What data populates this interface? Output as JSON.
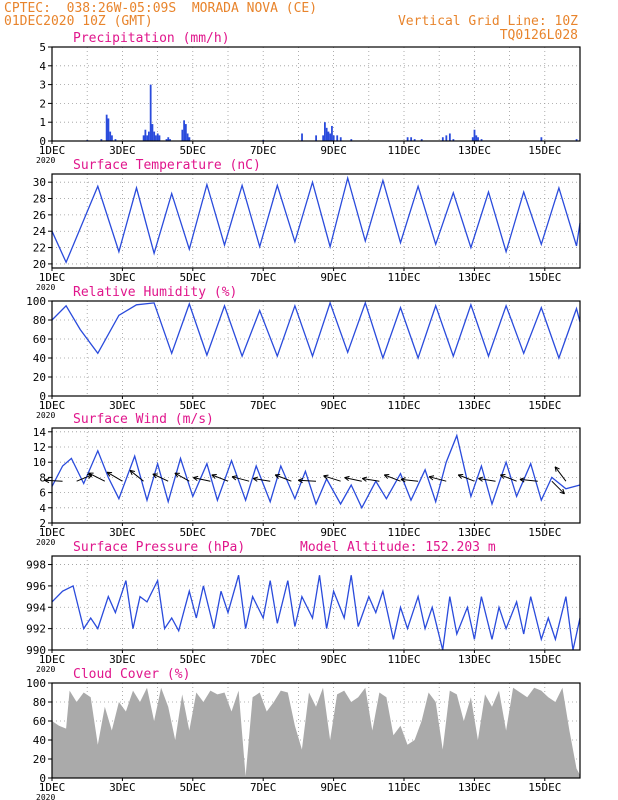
{
  "header": {
    "station": "CPTEC:  038:26W-05:09S  MORADA NOVA (CE)",
    "run": "01DEC2020 10Z (GMT)",
    "grid_note": "Vertical Grid Line: 10Z",
    "code": "TQ0126L028"
  },
  "colors": {
    "header": "#e8842c",
    "title": "#e0168c",
    "line": "#2a4bdc",
    "bar": "#2a4bdc",
    "cloud": "#aaaaaa",
    "grid": "#9a9a9a"
  },
  "x_axis": {
    "ticks": [
      {
        "day": 1,
        "label": "1DEC"
      },
      {
        "day": 3,
        "label": "3DEC"
      },
      {
        "day": 5,
        "label": "5DEC"
      },
      {
        "day": 7,
        "label": "7DEC"
      },
      {
        "day": 9,
        "label": "9DEC"
      },
      {
        "day": 11,
        "label": "11DEC"
      },
      {
        "day": 13,
        "label": "13DEC"
      },
      {
        "day": 15,
        "label": "15DEC"
      }
    ],
    "range": [
      1,
      16
    ],
    "year_label": "2020"
  },
  "chart_data": [
    {
      "type": "bar",
      "title": "Precipitation (mm/h)",
      "ylim": [
        0,
        5
      ],
      "yticks": [
        0,
        1,
        2,
        3,
        4,
        5
      ],
      "x": [
        2.0,
        2.4,
        2.55,
        2.6,
        2.65,
        2.7,
        2.8,
        3.6,
        3.65,
        3.7,
        3.75,
        3.8,
        3.85,
        3.9,
        3.95,
        4.0,
        4.05,
        4.25,
        4.3,
        4.35,
        4.7,
        4.75,
        4.8,
        4.85,
        4.9,
        7.0,
        8.1,
        8.5,
        8.7,
        8.75,
        8.8,
        8.85,
        8.9,
        8.95,
        9.0,
        9.1,
        9.2,
        9.5,
        11.1,
        11.2,
        11.3,
        11.5,
        12.1,
        12.2,
        12.3,
        12.4,
        12.95,
        13.0,
        13.05,
        13.1,
        13.2,
        14.9,
        15.9
      ],
      "values": [
        0.05,
        0.1,
        1.4,
        1.2,
        0.5,
        0.3,
        0.1,
        0.3,
        0.6,
        0.3,
        0.5,
        3.0,
        0.9,
        0.5,
        0.3,
        0.4,
        0.3,
        0.1,
        0.2,
        0.1,
        0.6,
        1.1,
        0.9,
        0.4,
        0.2,
        0.05,
        0.4,
        0.3,
        0.3,
        1.0,
        0.7,
        0.5,
        0.4,
        0.8,
        0.3,
        0.3,
        0.2,
        0.1,
        0.2,
        0.2,
        0.1,
        0.1,
        0.2,
        0.3,
        0.4,
        0.1,
        0.2,
        0.6,
        0.3,
        0.2,
        0.1,
        0.2,
        0.1
      ]
    },
    {
      "type": "line",
      "title": "Surface Temperature (nC)",
      "ylim": [
        19.5,
        31
      ],
      "yticks": [
        20,
        22,
        24,
        26,
        28,
        30
      ],
      "x": [
        1.0,
        1.4,
        2.3,
        2.9,
        3.4,
        3.9,
        4.4,
        4.9,
        5.4,
        5.9,
        6.4,
        6.9,
        7.4,
        7.9,
        8.4,
        8.9,
        9.4,
        9.9,
        10.4,
        10.9,
        11.4,
        11.9,
        12.4,
        12.9,
        13.4,
        13.9,
        14.4,
        14.9,
        15.4,
        15.9,
        16.0
      ],
      "values": [
        24.0,
        20.2,
        29.5,
        21.5,
        29.3,
        21.3,
        28.6,
        21.8,
        29.7,
        22.3,
        29.6,
        22.1,
        29.6,
        22.7,
        30.0,
        22.1,
        30.5,
        22.8,
        30.2,
        22.6,
        29.5,
        22.4,
        28.7,
        22.0,
        28.8,
        21.5,
        28.8,
        22.4,
        29.3,
        22.2,
        25.0
      ]
    },
    {
      "type": "line",
      "title": "Relative Humidity (%)",
      "ylim": [
        0,
        100
      ],
      "yticks": [
        0,
        20,
        40,
        60,
        80,
        100
      ],
      "x": [
        1.0,
        1.4,
        1.8,
        2.3,
        2.9,
        3.4,
        3.9,
        4.4,
        4.9,
        5.4,
        5.9,
        6.4,
        6.9,
        7.4,
        7.9,
        8.4,
        8.9,
        9.4,
        9.9,
        10.4,
        10.9,
        11.4,
        11.9,
        12.4,
        12.9,
        13.4,
        13.9,
        14.4,
        14.9,
        15.4,
        15.9,
        16.0
      ],
      "values": [
        80,
        95,
        70,
        45,
        85,
        96,
        98,
        45,
        97,
        43,
        95,
        42,
        90,
        42,
        95,
        42,
        98,
        46,
        98,
        40,
        93,
        40,
        95,
        42,
        96,
        42,
        95,
        45,
        93,
        40,
        92,
        78
      ]
    },
    {
      "type": "line",
      "title": "Surface Wind (m/s)",
      "ylim": [
        2,
        14.5
      ],
      "yticks": [
        2,
        4,
        6,
        8,
        10,
        12,
        14
      ],
      "x": [
        1.0,
        1.3,
        1.55,
        1.9,
        2.3,
        2.6,
        2.9,
        3.35,
        3.7,
        4.0,
        4.3,
        4.65,
        5.0,
        5.4,
        5.7,
        6.1,
        6.5,
        6.8,
        7.2,
        7.5,
        7.9,
        8.2,
        8.5,
        8.8,
        9.2,
        9.5,
        9.8,
        10.2,
        10.5,
        10.9,
        11.2,
        11.6,
        11.9,
        12.2,
        12.5,
        12.9,
        13.2,
        13.5,
        13.9,
        14.2,
        14.6,
        14.9,
        15.2,
        15.6,
        16.0
      ],
      "values": [
        6.8,
        9.5,
        10.5,
        7.2,
        11.5,
        8.0,
        5.2,
        10.8,
        5.0,
        9.8,
        4.8,
        10.5,
        5.5,
        9.8,
        5.0,
        10.2,
        5.0,
        9.5,
        4.8,
        9.5,
        5.2,
        8.8,
        4.5,
        7.8,
        4.5,
        7.0,
        4.0,
        7.5,
        5.2,
        8.5,
        5.0,
        9.0,
        4.8,
        10.0,
        13.5,
        5.5,
        9.5,
        4.5,
        10.0,
        5.5,
        9.8,
        5.0,
        8.0,
        6.5,
        7.0
      ],
      "arrows": [
        {
          "x": 1.3,
          "u": 1,
          "v": 0.05
        },
        {
          "x": 1.7,
          "u": -0.85,
          "v": 0.35
        },
        {
          "x": 2.5,
          "u": 0.9,
          "v": 0.45
        },
        {
          "x": 3.0,
          "u": 0.85,
          "v": 0.5
        },
        {
          "x": 3.6,
          "u": 0.75,
          "v": 0.6
        },
        {
          "x": 4.3,
          "u": 0.85,
          "v": 0.4
        },
        {
          "x": 4.9,
          "u": 0.8,
          "v": 0.45
        },
        {
          "x": 5.5,
          "u": 0.95,
          "v": 0.2
        },
        {
          "x": 6.0,
          "u": 0.9,
          "v": 0.35
        },
        {
          "x": 6.6,
          "u": 0.95,
          "v": 0.25
        },
        {
          "x": 7.2,
          "u": 0.95,
          "v": 0.15
        },
        {
          "x": 7.8,
          "u": 0.9,
          "v": 0.35
        },
        {
          "x": 8.5,
          "u": 0.99,
          "v": 0.05
        },
        {
          "x": 9.2,
          "u": 0.95,
          "v": 0.3
        },
        {
          "x": 9.8,
          "u": 0.95,
          "v": 0.2
        },
        {
          "x": 10.3,
          "u": 0.95,
          "v": 0.15
        },
        {
          "x": 10.9,
          "u": 0.9,
          "v": 0.35
        },
        {
          "x": 11.4,
          "u": 0.95,
          "v": 0.1
        },
        {
          "x": 12.2,
          "u": 0.95,
          "v": 0.25
        },
        {
          "x": 13.0,
          "u": 0.9,
          "v": 0.35
        },
        {
          "x": 13.6,
          "u": 0.95,
          "v": 0.15
        },
        {
          "x": 14.2,
          "u": 0.9,
          "v": 0.35
        },
        {
          "x": 14.8,
          "u": 0.99,
          "v": 0.1
        },
        {
          "x": 15.2,
          "u": -0.7,
          "v": -0.7
        },
        {
          "x": 15.6,
          "u": 0.6,
          "v": 0.8
        }
      ]
    },
    {
      "type": "line",
      "title": "Surface Pressure (hPa)",
      "annotation": "Model Altitude: 152.203 m",
      "ylim": [
        990,
        998.8
      ],
      "yticks": [
        990,
        992,
        994,
        996,
        998
      ],
      "x": [
        1.0,
        1.3,
        1.6,
        1.9,
        2.1,
        2.3,
        2.6,
        2.8,
        3.1,
        3.3,
        3.5,
        3.7,
        4.0,
        4.2,
        4.4,
        4.6,
        4.9,
        5.1,
        5.3,
        5.6,
        5.8,
        6.0,
        6.3,
        6.5,
        6.7,
        7.0,
        7.2,
        7.4,
        7.7,
        7.9,
        8.1,
        8.4,
        8.6,
        8.8,
        9.0,
        9.3,
        9.5,
        9.7,
        10.0,
        10.2,
        10.4,
        10.7,
        10.9,
        11.1,
        11.4,
        11.6,
        11.8,
        12.1,
        12.3,
        12.5,
        12.8,
        13.0,
        13.2,
        13.5,
        13.7,
        13.9,
        14.2,
        14.4,
        14.6,
        14.9,
        15.1,
        15.3,
        15.6,
        15.8,
        16.0
      ],
      "values": [
        994.5,
        995.5,
        996.0,
        992.0,
        993.0,
        992.0,
        995.0,
        993.5,
        996.5,
        992.0,
        995.0,
        994.5,
        996.5,
        992.0,
        993.0,
        991.8,
        995.5,
        993.0,
        996.0,
        992.0,
        995.5,
        993.5,
        997.0,
        992.0,
        995.0,
        993.0,
        996.5,
        992.5,
        996.5,
        992.2,
        995.0,
        993.0,
        997.0,
        992.0,
        995.5,
        993.0,
        997.0,
        992.2,
        995.0,
        993.5,
        995.5,
        991.0,
        994.0,
        992.0,
        995.0,
        992.0,
        994.0,
        990.0,
        995.0,
        991.5,
        994.0,
        991.0,
        995.0,
        991.0,
        994.0,
        992.0,
        994.5,
        991.5,
        995.0,
        991.0,
        993.0,
        991.0,
        995.0,
        990.0,
        993.0
      ]
    },
    {
      "type": "area",
      "title": "Cloud Cover (%)",
      "ylim": [
        0,
        100
      ],
      "yticks": [
        0,
        20,
        40,
        60,
        80,
        100
      ],
      "x": [
        1.0,
        1.2,
        1.4,
        1.5,
        1.7,
        1.9,
        2.1,
        2.3,
        2.5,
        2.7,
        2.9,
        3.1,
        3.3,
        3.5,
        3.7,
        3.9,
        4.1,
        4.3,
        4.5,
        4.7,
        4.9,
        5.1,
        5.3,
        5.5,
        5.7,
        5.9,
        6.1,
        6.3,
        6.5,
        6.7,
        6.9,
        7.1,
        7.3,
        7.5,
        7.7,
        7.9,
        8.1,
        8.3,
        8.5,
        8.7,
        8.9,
        9.1,
        9.3,
        9.5,
        9.7,
        9.9,
        10.1,
        10.3,
        10.5,
        10.7,
        10.9,
        11.1,
        11.3,
        11.5,
        11.7,
        11.9,
        12.1,
        12.3,
        12.5,
        12.7,
        12.9,
        13.1,
        13.3,
        13.5,
        13.7,
        13.9,
        14.1,
        14.3,
        14.5,
        14.7,
        14.9,
        15.1,
        15.3,
        15.5,
        15.7,
        15.9,
        16.0
      ],
      "values": [
        60,
        55,
        52,
        92,
        80,
        90,
        85,
        35,
        75,
        50,
        80,
        70,
        92,
        80,
        95,
        60,
        95,
        75,
        40,
        88,
        50,
        90,
        80,
        92,
        88,
        90,
        70,
        92,
        2,
        85,
        90,
        70,
        80,
        92,
        90,
        55,
        30,
        90,
        75,
        95,
        40,
        88,
        92,
        80,
        85,
        95,
        50,
        90,
        85,
        45,
        55,
        35,
        40,
        60,
        90,
        80,
        30,
        92,
        88,
        60,
        85,
        40,
        88,
        75,
        92,
        50,
        95,
        90,
        85,
        95,
        92,
        85,
        80,
        95,
        50,
        10,
        3
      ]
    }
  ]
}
